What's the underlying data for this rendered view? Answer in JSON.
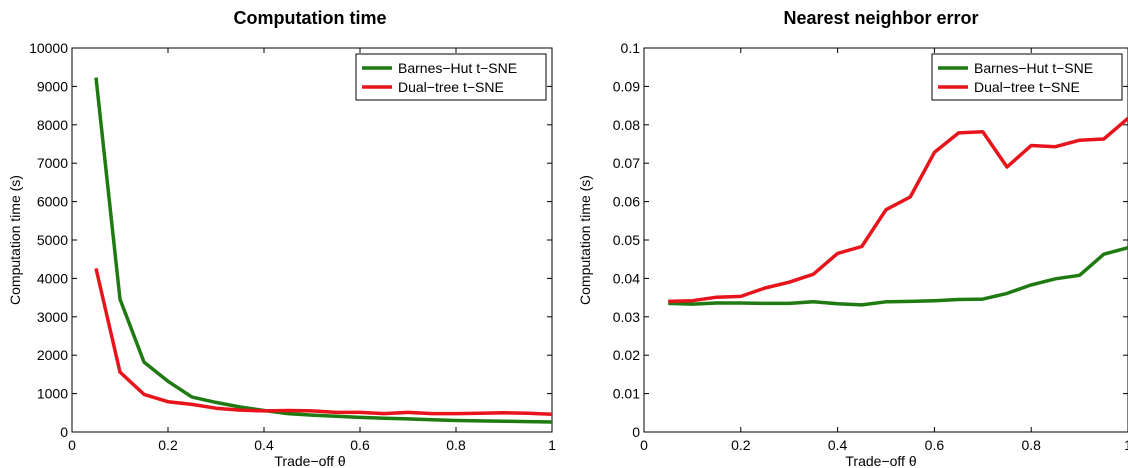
{
  "chart_data": [
    {
      "type": "line",
      "title": "Computation time",
      "xlabel": "Trade−off θ",
      "ylabel": "Computation time (s)",
      "xlim": [
        0,
        1
      ],
      "ylim": [
        0,
        10000
      ],
      "xticks": [
        "0",
        "0.2",
        "0.4",
        "0.6",
        "0.8",
        "1"
      ],
      "yticks": [
        "0",
        "1000",
        "2000",
        "3000",
        "4000",
        "5000",
        "6000",
        "7000",
        "8000",
        "9000",
        "10000"
      ],
      "x": [
        0.05,
        0.1,
        0.15,
        0.2,
        0.25,
        0.3,
        0.35,
        0.4,
        0.45,
        0.5,
        0.55,
        0.6,
        0.65,
        0.7,
        0.75,
        0.8,
        0.85,
        0.9,
        0.95,
        1.0
      ],
      "series": [
        {
          "name": "Barnes−Hut t−SNE",
          "color": "#1f7a12",
          "values": [
            9230,
            3460,
            1820,
            1320,
            910,
            770,
            650,
            560,
            480,
            440,
            410,
            380,
            360,
            340,
            320,
            300,
            290,
            280,
            270,
            260
          ]
        },
        {
          "name": "Dual−tree t−SNE",
          "color": "#e8141c",
          "values": [
            4260,
            1560,
            980,
            790,
            720,
            620,
            570,
            550,
            560,
            550,
            510,
            510,
            480,
            510,
            480,
            480,
            490,
            500,
            490,
            460
          ]
        }
      ],
      "grid": false,
      "legend": "top-right"
    },
    {
      "type": "line",
      "title": "Nearest neighbor error",
      "xlabel": "Trade−off θ",
      "ylabel": "Computation time (s)",
      "xlim": [
        0,
        1
      ],
      "ylim": [
        0,
        0.1
      ],
      "xticks": [
        "0",
        "0.2",
        "0.4",
        "0.6",
        "0.8",
        "1"
      ],
      "yticks": [
        "0",
        "0.01",
        "0.02",
        "0.03",
        "0.04",
        "0.05",
        "0.06",
        "0.07",
        "0.08",
        "0.09",
        "0.1"
      ],
      "x": [
        0.05,
        0.1,
        0.15,
        0.2,
        0.25,
        0.3,
        0.35,
        0.4,
        0.45,
        0.5,
        0.55,
        0.6,
        0.65,
        0.7,
        0.75,
        0.8,
        0.85,
        0.9,
        0.95,
        1.0
      ],
      "series": [
        {
          "name": "Barnes−Hut t−SNE",
          "color": "#1f7a12",
          "values": [
            0.0335,
            0.0333,
            0.0336,
            0.0336,
            0.0335,
            0.0335,
            0.0339,
            0.0334,
            0.0331,
            0.0339,
            0.034,
            0.0342,
            0.0345,
            0.0346,
            0.0361,
            0.0383,
            0.0399,
            0.0408,
            0.0463,
            0.048
          ]
        },
        {
          "name": "Dual−tree t−SNE",
          "color": "#e8141c",
          "values": [
            0.034,
            0.0342,
            0.0351,
            0.0353,
            0.0375,
            0.039,
            0.0411,
            0.0465,
            0.0483,
            0.0579,
            0.0612,
            0.0728,
            0.0779,
            0.0782,
            0.069,
            0.0746,
            0.0743,
            0.076,
            0.0763,
            0.0817
          ]
        }
      ],
      "grid": false,
      "legend": "top-right"
    }
  ]
}
